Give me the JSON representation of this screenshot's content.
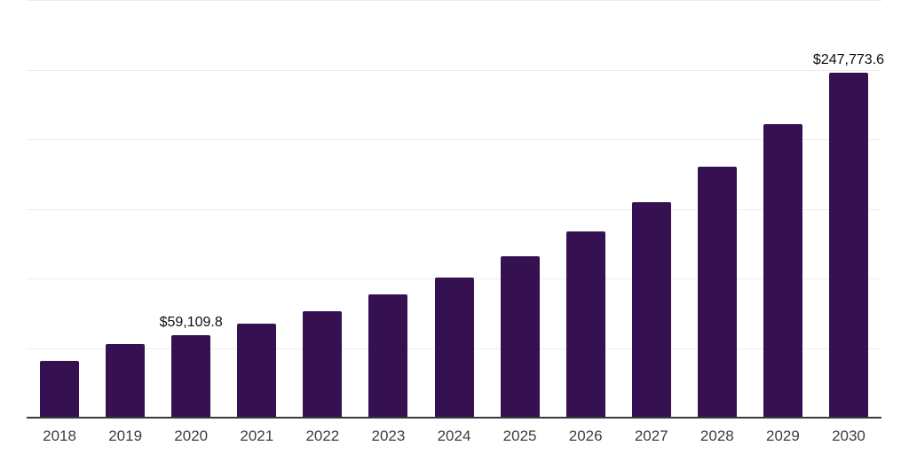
{
  "chart_data": {
    "type": "bar",
    "title": "",
    "xlabel": "",
    "ylabel": "",
    "categories": [
      "2018",
      "2019",
      "2020",
      "2021",
      "2022",
      "2023",
      "2024",
      "2025",
      "2026",
      "2027",
      "2028",
      "2029",
      "2030"
    ],
    "values": [
      40700,
      52800,
      59109.8,
      67400,
      76300,
      88400,
      100400,
      115700,
      133500,
      155100,
      180500,
      211000,
      247773.6
    ],
    "data_labels": {
      "2020": "$59,109.8",
      "2030": "$247,773.6"
    },
    "ylim": [
      0,
      300000
    ],
    "gridline_step": 50000,
    "grid": true,
    "legend": false,
    "y_axis_labels_visible": false,
    "colors": {
      "bar": "#361151",
      "gridline": "#ededed",
      "axis_line": "#3a3a3a",
      "tick_label": "#3d3d3d",
      "data_label": "#0d0d0d",
      "background": "#ffffff"
    }
  }
}
